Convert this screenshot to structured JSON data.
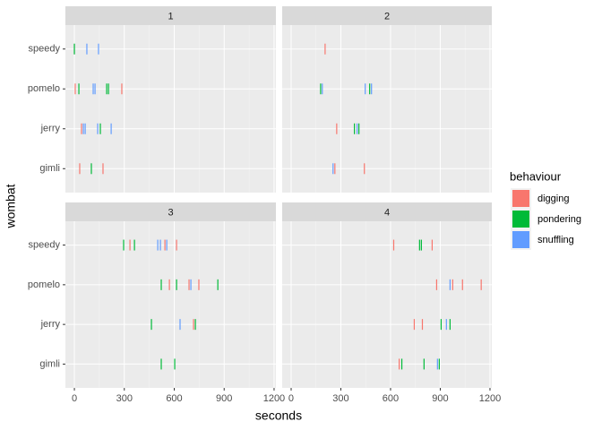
{
  "chart_data": {
    "type": "strip",
    "x_label": "seconds",
    "y_label": "wombat",
    "categories": [
      "gimli",
      "jerry",
      "pomelo",
      "speedy"
    ],
    "xlim": [
      -54,
      1211
    ],
    "xticks": [
      0,
      300,
      600,
      900,
      1200
    ],
    "grid": true,
    "legend": {
      "title": "behaviour",
      "position": "right"
    },
    "series": [
      {
        "name": "digging",
        "color": "#F8766D"
      },
      {
        "name": "pondering",
        "color": "#00BA38"
      },
      {
        "name": "snuffling",
        "color": "#619CFF"
      }
    ],
    "facets": [
      {
        "label": "1",
        "series": [
          {
            "x": [
              5,
              285,
              43,
              32,
              172
            ],
            "y": [
              "pomelo",
              "pomelo",
              "jerry",
              "gimli",
              "gimli"
            ]
          },
          {
            "x": [
              0,
              27,
              194,
              205,
              156,
              102
            ],
            "y": [
              "speedy",
              "pomelo",
              "pomelo",
              "pomelo",
              "jerry",
              "gimli"
            ]
          },
          {
            "x": [
              75,
              145,
              113,
              124,
              54,
              65,
              140,
              221
            ],
            "y": [
              "speedy",
              "speedy",
              "pomelo",
              "pomelo",
              "jerry",
              "jerry",
              "jerry",
              "jerry"
            ]
          }
        ]
      },
      {
        "label": "2",
        "series": [
          {
            "x": [
              205,
              275,
              264,
              442
            ],
            "y": [
              "speedy",
              "jerry",
              "gimli",
              "gimli"
            ]
          },
          {
            "x": [
              178,
              474,
              382,
              409
            ],
            "y": [
              "pomelo",
              "pomelo",
              "jerry",
              "jerry"
            ]
          },
          {
            "x": [
              188,
              447,
              485,
              398,
              253
            ],
            "y": [
              "pomelo",
              "pomelo",
              "pomelo",
              "jerry",
              "gimli"
            ]
          }
        ]
      },
      {
        "label": "3",
        "series": [
          {
            "x": [
              334,
              544,
              614,
              571,
              689,
              748,
              716
            ],
            "y": [
              "speedy",
              "speedy",
              "speedy",
              "pomelo",
              "pomelo",
              "pomelo",
              "jerry"
            ]
          },
          {
            "x": [
              296,
              361,
              522,
              614,
              862,
              463,
              727,
              522,
              603
            ],
            "y": [
              "speedy",
              "speedy",
              "pomelo",
              "pomelo",
              "pomelo",
              "jerry",
              "jerry",
              "gimli",
              "gimli"
            ]
          },
          {
            "x": [
              501,
              517,
              555,
              700,
              635
            ],
            "y": [
              "speedy",
              "speedy",
              "speedy",
              "pomelo",
              "jerry"
            ]
          }
        ]
      },
      {
        "label": "4",
        "series": [
          {
            "x": [
              619,
              851,
              878,
              975,
              1034,
              1147,
              743,
              792,
              652
            ],
            "y": [
              "speedy",
              "speedy",
              "pomelo",
              "pomelo",
              "pomelo",
              "pomelo",
              "jerry",
              "jerry",
              "gimli"
            ]
          },
          {
            "x": [
              775,
              786,
              905,
              959,
              668,
              802,
              894
            ],
            "y": [
              "speedy",
              "speedy",
              "jerry",
              "jerry",
              "gimli",
              "gimli",
              "gimli"
            ]
          },
          {
            "x": [
              959,
              937,
              883
            ],
            "y": [
              "pomelo",
              "jerry",
              "gimli"
            ]
          }
        ]
      }
    ]
  }
}
